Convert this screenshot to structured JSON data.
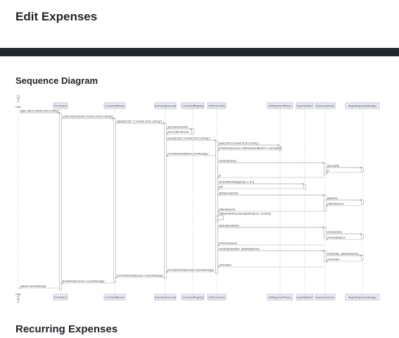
{
  "page": {
    "title": "Edit Expenses",
    "section_sequence": "Sequence Diagram",
    "section_recurring": "Recurring Expenses"
  },
  "diagram": {
    "actor": "User",
    "participants": [
      "FinTrackUI",
      "CommandRouter",
      "CommandExecutor",
      "CommandRegistry",
      "EditCommand",
      "EditArgumentParser",
      "InputValidator",
      "ExpenseService",
      "RegularExpenseManager"
    ],
    "messages": [
      {
        "label": "types \"edit 2 /d dinner /$ 25 /c Dining\"",
        "from": 0,
        "to": 1,
        "ret": false
      },
      {
        "label": "routeCommand(\"edit 2 /d dinner /$ 25 /c Dining\")",
        "from": 1,
        "to": 2,
        "ret": false
      },
      {
        "label": "dispatch(\"edit\", \"2 /d dinner /$ 25 /c Dining\")",
        "from": 2,
        "to": 3,
        "ret": false
      },
      {
        "label": "getCommand(\"edit\")",
        "from": 3,
        "to": 4,
        "ret": false
      },
      {
        "label": "return EditCommand",
        "from": 4,
        "to": 3,
        "ret": true
      },
      {
        "label": "execute(\"edit 2 /d dinner /$ 25 /c Dining\")",
        "from": 3,
        "to": 5,
        "ret": false
      },
      {
        "label": "parse(\"edit 2 /d dinner /$ 25 /c Dining\")",
        "from": 5,
        "to": 6,
        "ret": false
      },
      {
        "label": "ParseResult(success, EditParseResult(index=1, description))",
        "from": 6,
        "to": 5,
        "ret": true
      },
      {
        "label": "CommandResult(failure, errorMessage)",
        "from": 5,
        "to": 3,
        "ret": true
      },
      {
        "label": "countExpenses()",
        "from": 5,
        "to": 8,
        "ret": false
      },
      {
        "label": "getLength()",
        "from": 8,
        "to": 9,
        "ret": false
      },
      {
        "label": "N",
        "from": 9,
        "to": 8,
        "ret": true
      },
      {
        "label": "N",
        "from": 8,
        "to": 5,
        "ret": true
      },
      {
        "label": "isIndexWithinRange(index, 0, N-1)",
        "from": 5,
        "to": 7,
        "ret": false
      },
      {
        "label": "true",
        "from": 7,
        "to": 5,
        "ret": true
      },
      {
        "label": "getExpense(index)",
        "from": 5,
        "to": 8,
        "ret": false
      },
      {
        "label": "get(index)",
        "from": 8,
        "to": 9,
        "ret": false
      },
      {
        "label": "originalExpense",
        "from": 9,
        "to": 8,
        "ret": true
      },
      {
        "label": "originalExpense",
        "from": 8,
        "to": 5,
        "ret": true
      },
      {
        "label": "buildUpdatedExpense(originalExpense, record(dr))",
        "from": 5,
        "to": 5,
        "ret": false
      },
      {
        "label": "skipExpense(index)",
        "from": 5,
        "to": 8,
        "ret": false
      },
      {
        "label": "remove(index)",
        "from": 8,
        "to": 9,
        "ret": false
      },
      {
        "label": "removedExpense",
        "from": 9,
        "to": 8,
        "ret": true
      },
      {
        "label": "removedExpense",
        "from": 8,
        "to": 5,
        "ret": true
      },
      {
        "label": "insertExpense(index, updatedExpense)",
        "from": 5,
        "to": 8,
        "ret": false
      },
      {
        "label": "insert(index, updatedExpense)",
        "from": 8,
        "to": 9,
        "ret": false
      },
      {
        "label": "confirmation",
        "from": 9,
        "to": 8,
        "ret": true
      },
      {
        "label": "confirmation",
        "from": 8,
        "to": 5,
        "ret": true
      },
      {
        "label": "CommandResult(success, successMessage)",
        "from": 5,
        "to": 3,
        "ret": true
      },
      {
        "label": "CommandResult(success, successMessage)",
        "from": 3,
        "to": 2,
        "ret": true
      },
      {
        "label": "RouteResult(success, successMessage)",
        "from": 2,
        "to": 1,
        "ret": true
      },
      {
        "label": "display successMessage",
        "from": 1,
        "to": 0,
        "ret": true
      }
    ]
  }
}
